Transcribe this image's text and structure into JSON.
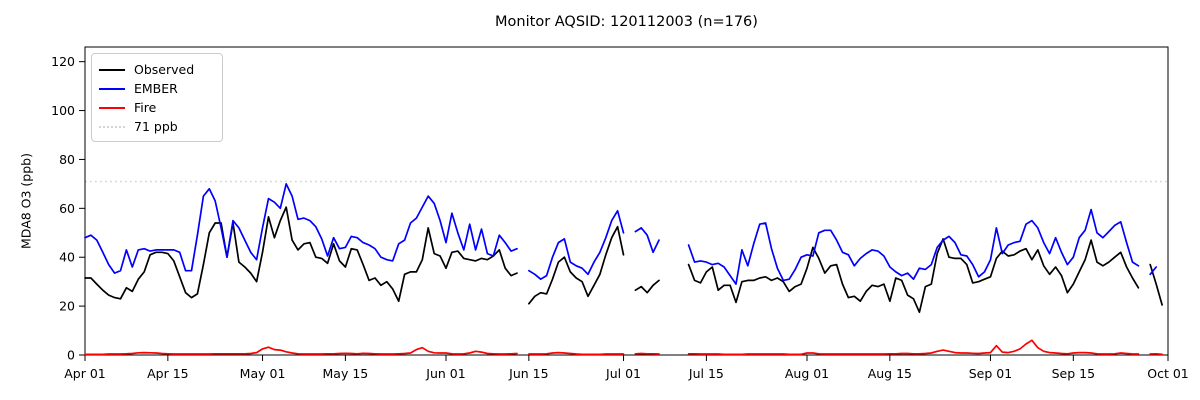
{
  "chart_data": {
    "type": "line",
    "title": "Monitor AQSID: 120112003 (n=176)",
    "xlabel": "",
    "ylabel": "MDA8 O3 (ppb)",
    "ylim": [
      0,
      126
    ],
    "y_ticks": [
      0,
      20,
      40,
      60,
      80,
      100,
      120
    ],
    "x_start_date": "Apr 01",
    "x_days_total": 183,
    "x_tick_labels": [
      "Apr 01",
      "Apr 15",
      "May 01",
      "May 15",
      "Jun 01",
      "Jun 15",
      "Jul 01",
      "Jul 15",
      "Aug 01",
      "Aug 15",
      "Sep 01",
      "Sep 15",
      "Oct 01"
    ],
    "x_tick_day_index": [
      0,
      14,
      30,
      44,
      61,
      75,
      91,
      105,
      122,
      136,
      153,
      167,
      183
    ],
    "grid": false,
    "legend_position": "upper left",
    "reference_line": {
      "label": "71 ppb",
      "value": 71,
      "color": "#d5d5d5",
      "style": "dotted"
    },
    "missing_dates": [
      "Jun 14",
      "Jul 02",
      "Jul 08",
      "Jul 09",
      "Jul 10",
      "Jul 11",
      "Sep 27"
    ],
    "series": [
      {
        "name": "Observed",
        "color": "#000000",
        "values": [
          31.5,
          31.5,
          29,
          26.5,
          24.5,
          23.5,
          23,
          27.5,
          26,
          31,
          34,
          41,
          42,
          42,
          41.5,
          38.5,
          32,
          25.5,
          23.5,
          25,
          37,
          50,
          54,
          54,
          40,
          54,
          38,
          36,
          33.5,
          30,
          42,
          56.5,
          48,
          55,
          60.5,
          47,
          43,
          45.5,
          46,
          40,
          39.5,
          37.5,
          45.5,
          38.5,
          36,
          43.5,
          43,
          37,
          30.5,
          31.5,
          28.5,
          30,
          27,
          22,
          33,
          34,
          34,
          39,
          52,
          41.5,
          40.5,
          35.5,
          42,
          42.5,
          39.5,
          39,
          38.5,
          39.5,
          39,
          40.5,
          43,
          35.5,
          32.5,
          33.5,
          null,
          21,
          24,
          25.5,
          25,
          31,
          38,
          40,
          34,
          31.5,
          30,
          24,
          28.5,
          33,
          41,
          48,
          52.5,
          41,
          null,
          26.5,
          28,
          25.5,
          28.5,
          30.5,
          null,
          null,
          null,
          null,
          37,
          30.5,
          29.5,
          34,
          36,
          26.5,
          28.5,
          28.5,
          21.5,
          30,
          30.5,
          30.5,
          31.5,
          32,
          30.5,
          31.5,
          30,
          26,
          28,
          29,
          35.5,
          44,
          39.5,
          33.5,
          36.5,
          37,
          29,
          23.5,
          24,
          22,
          26,
          28.5,
          28,
          29,
          22,
          31.5,
          30.5,
          24.5,
          23,
          17.5,
          28,
          29,
          41.5,
          47.5,
          40,
          39.5,
          39.5,
          37,
          29.5,
          30,
          31,
          32,
          39.5,
          42.5,
          40.5,
          41,
          42.5,
          43.5,
          39,
          43,
          36.5,
          33,
          36,
          32.5,
          25.5,
          29,
          34,
          39,
          47,
          38,
          36.5,
          38,
          40,
          42,
          36,
          31.5,
          27.5,
          null,
          37,
          29,
          20.5
        ]
      },
      {
        "name": "EMBER",
        "color": "#0000ff",
        "values": [
          48,
          49,
          47,
          42,
          37,
          33.5,
          34.5,
          43,
          36,
          43,
          43.5,
          42.5,
          43,
          43,
          43,
          43,
          42,
          34.5,
          34.5,
          49,
          65,
          68,
          63,
          52,
          40,
          55,
          52,
          47,
          42,
          39,
          52,
          64,
          62.5,
          60,
          70,
          65,
          55.5,
          56,
          55,
          52.5,
          47.5,
          40.5,
          48,
          43.5,
          44,
          48.5,
          48,
          46,
          45,
          43.5,
          40,
          39,
          38.5,
          45.5,
          47,
          54,
          56,
          60.5,
          65,
          62,
          55,
          46,
          58,
          50,
          43,
          53.5,
          43,
          51.5,
          41.5,
          40.5,
          49,
          46,
          42.5,
          43.5,
          null,
          34.5,
          33,
          31,
          32.5,
          40,
          46,
          47.5,
          38,
          36.5,
          35.5,
          33,
          38,
          42,
          48,
          55,
          59,
          50,
          null,
          50.5,
          52,
          49,
          42,
          47,
          null,
          null,
          null,
          null,
          45,
          38,
          38.5,
          38,
          37,
          37.5,
          36,
          32.5,
          29,
          43,
          36.5,
          45.5,
          53.5,
          54,
          43.5,
          35.5,
          30.5,
          31,
          35,
          40,
          41,
          40.5,
          50,
          51,
          51,
          47,
          42,
          41,
          36.5,
          39.5,
          41.5,
          43,
          42.5,
          40.5,
          36,
          34,
          32.5,
          33.5,
          31,
          35.5,
          35,
          37,
          44,
          47,
          48.5,
          46,
          41,
          40.5,
          37,
          32,
          34,
          39,
          52,
          41.5,
          45,
          46,
          46.5,
          53.5,
          55,
          52,
          46,
          41.5,
          48,
          42,
          37,
          40,
          48,
          51,
          59.5,
          50,
          48,
          50.5,
          53,
          54.5,
          46,
          38,
          36.5,
          null,
          33,
          36,
          null
        ]
      },
      {
        "name": "Fire",
        "color": "#ff0000",
        "values": [
          0.3,
          0.3,
          0.3,
          0.3,
          0.4,
          0.4,
          0.4,
          0.5,
          0.6,
          0.9,
          1.0,
          0.9,
          0.8,
          0.6,
          0.5,
          0.4,
          0.4,
          0.4,
          0.4,
          0.4,
          0.4,
          0.4,
          0.5,
          0.5,
          0.5,
          0.5,
          0.5,
          0.5,
          0.6,
          1.0,
          2.5,
          3.2,
          2.2,
          2.0,
          1.3,
          0.8,
          0.5,
          0.4,
          0.4,
          0.4,
          0.4,
          0.5,
          0.5,
          0.6,
          0.7,
          0.6,
          0.5,
          0.7,
          0.6,
          0.5,
          0.4,
          0.4,
          0.4,
          0.5,
          0.6,
          0.8,
          2.2,
          3.0,
          1.5,
          0.9,
          0.8,
          0.8,
          0.5,
          0.4,
          0.5,
          0.8,
          1.5,
          1.2,
          0.6,
          0.5,
          0.4,
          0.4,
          0.5,
          0.6,
          null,
          0.4,
          0.4,
          0.4,
          0.5,
          0.8,
          1.0,
          0.8,
          0.6,
          0.4,
          0.3,
          0.3,
          0.3,
          0.3,
          0.4,
          0.4,
          0.4,
          0.4,
          null,
          0.5,
          0.6,
          0.5,
          0.5,
          0.4,
          null,
          null,
          null,
          null,
          0.5,
          0.5,
          0.4,
          0.4,
          0.4,
          0.4,
          0.3,
          0.3,
          0.3,
          0.3,
          0.4,
          0.4,
          0.4,
          0.4,
          0.4,
          0.4,
          0.4,
          0.3,
          0.3,
          0.3,
          0.8,
          0.8,
          0.5,
          0.4,
          0.4,
          0.4,
          0.4,
          0.4,
          0.4,
          0.4,
          0.4,
          0.4,
          0.4,
          0.4,
          0.5,
          0.5,
          0.6,
          0.6,
          0.5,
          0.5,
          0.6,
          0.8,
          1.5,
          2.0,
          1.5,
          1.0,
          0.8,
          0.8,
          0.7,
          0.6,
          0.8,
          1.0,
          3.8,
          1.2,
          1.0,
          1.5,
          2.5,
          4.5,
          6.0,
          3.0,
          1.5,
          1.0,
          0.8,
          0.6,
          0.5,
          0.8,
          1.0,
          1.0,
          0.8,
          0.5,
          0.4,
          0.4,
          0.5,
          0.8,
          0.6,
          0.4,
          0.4,
          null,
          0.4,
          0.5,
          0.3
        ]
      }
    ]
  }
}
